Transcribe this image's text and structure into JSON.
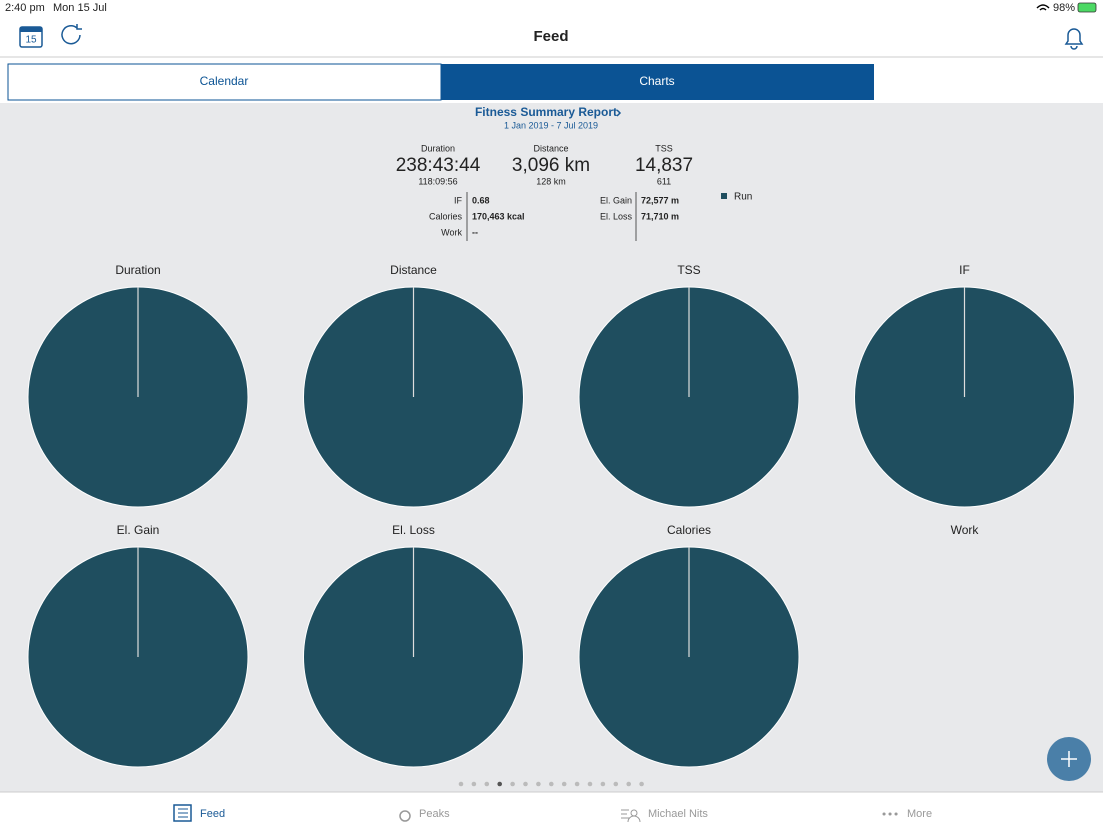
{
  "status_bar": {
    "time": "2:40 pm",
    "date": "Mon 15 Jul",
    "battery": "98%"
  },
  "nav": {
    "title": "Feed",
    "calendar_day": "15"
  },
  "segments": [
    "Calendar",
    "Charts"
  ],
  "report": {
    "title": "Fitness Summary Report",
    "date_range": "1 Jan 2019 - 7 Jul 2019",
    "stats": [
      {
        "label": "Duration",
        "value": "238:43:44",
        "sub": "118:09:56"
      },
      {
        "label": "Distance",
        "value": "3,096 km",
        "sub": "128 km"
      },
      {
        "label": "TSS",
        "value": "14,837",
        "sub": "611"
      }
    ],
    "details_left": [
      [
        "IF",
        "0.68"
      ],
      [
        "Calories",
        "170,463 kcal"
      ],
      [
        "Work",
        "--"
      ]
    ],
    "details_right": [
      [
        "El. Gain",
        "72,577 m"
      ],
      [
        "El. Loss",
        "71,710 m"
      ]
    ]
  },
  "chart_data": {
    "type": "pie",
    "series": [
      {
        "name": "Run",
        "color": "#1f4e5f"
      }
    ],
    "charts": [
      {
        "title": "Duration",
        "values": [
          100
        ]
      },
      {
        "title": "Distance",
        "values": [
          100
        ]
      },
      {
        "title": "TSS",
        "values": [
          100
        ]
      },
      {
        "title": "IF",
        "values": [
          100
        ]
      },
      {
        "title": "El. Gain",
        "values": [
          100
        ]
      },
      {
        "title": "El. Loss",
        "values": [
          100
        ]
      },
      {
        "title": "Calories",
        "values": [
          100
        ]
      },
      {
        "title": "Work",
        "values": []
      }
    ]
  },
  "tabs": [
    "Feed",
    "Peaks",
    "Michael Nits",
    "More"
  ]
}
